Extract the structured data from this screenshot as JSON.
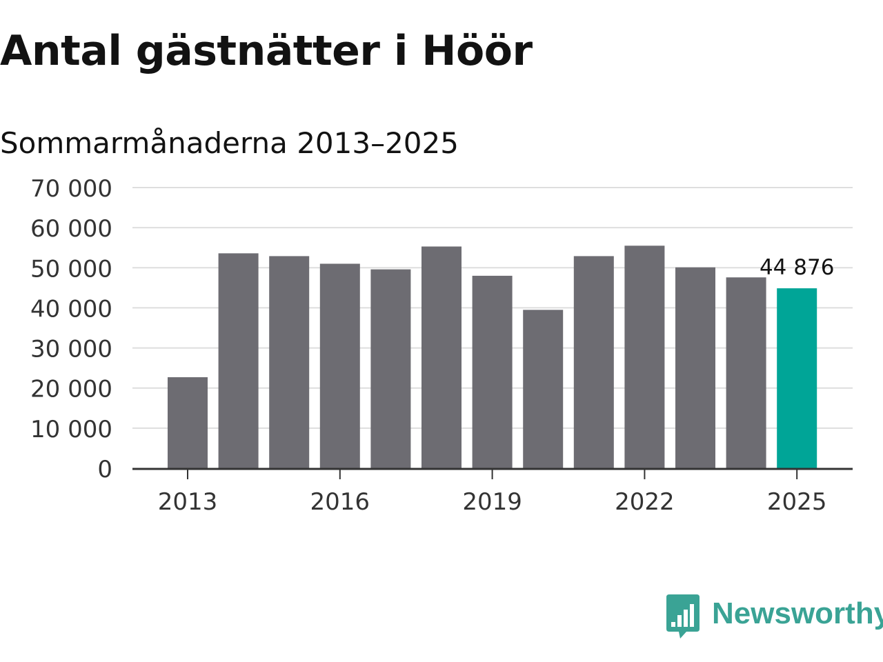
{
  "header": {
    "title": "Antal gästnätter i Höör",
    "subtitle": "Sommarmånaderna 2013–2025"
  },
  "brand": {
    "name": "Newsworthy",
    "icon": "newsworthy-logo-icon",
    "color": "#3aa395"
  },
  "chart_data": {
    "type": "bar",
    "title": "Antal gästnätter i Höör",
    "subtitle": "Sommarmånaderna 2013–2025",
    "xlabel": "",
    "ylabel": "",
    "categories": [
      "2013",
      "2014",
      "2015",
      "2016",
      "2017",
      "2018",
      "2019",
      "2020",
      "2021",
      "2022",
      "2023",
      "2024",
      "2025"
    ],
    "values": [
      22700,
      53600,
      52900,
      51000,
      49600,
      55300,
      48000,
      39500,
      52900,
      55500,
      50100,
      47600,
      44876
    ],
    "x_tick_labels": [
      "2013",
      "2016",
      "2019",
      "2022",
      "2025"
    ],
    "y_tick_labels": [
      "0",
      "10 000",
      "20 000",
      "30 000",
      "40 000",
      "50 000",
      "60 000",
      "70 000"
    ],
    "y_ticks": [
      0,
      10000,
      20000,
      30000,
      40000,
      50000,
      60000,
      70000
    ],
    "ylim": [
      0,
      70000
    ],
    "grid": true,
    "bar_color": "#6d6c72",
    "highlight_color": "#00a597",
    "highlight_index": 12,
    "annotation": {
      "category": "2025",
      "label": "44 876"
    }
  }
}
